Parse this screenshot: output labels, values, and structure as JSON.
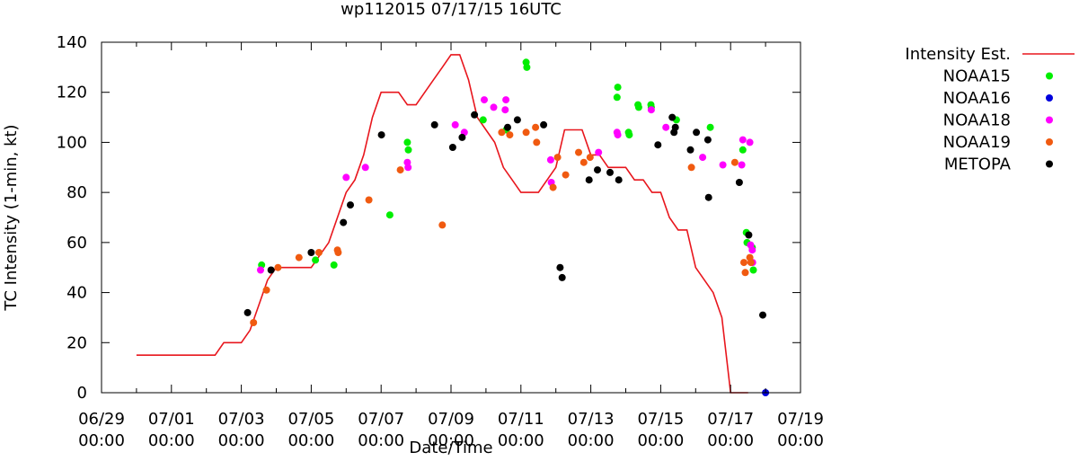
{
  "chart_data": {
    "type": "scatter",
    "title": "wp112015 07/17/15 16UTC",
    "xlabel": "Date/Time",
    "ylabel": "TC Intensity (1-min, kt)",
    "xlim": [
      "06/29 00:00",
      "07/19 00:00"
    ],
    "ylim": [
      0,
      140
    ],
    "x_unit": "days since 06/29 00:00",
    "x_ticks": [
      {
        "x": 0,
        "label1": "06/29",
        "label2": "00:00"
      },
      {
        "x": 2,
        "label1": "07/01",
        "label2": "00:00"
      },
      {
        "x": 4,
        "label1": "07/03",
        "label2": "00:00"
      },
      {
        "x": 6,
        "label1": "07/05",
        "label2": "00:00"
      },
      {
        "x": 8,
        "label1": "07/07",
        "label2": "00:00"
      },
      {
        "x": 10,
        "label1": "07/09",
        "label2": "00:00"
      },
      {
        "x": 12,
        "label1": "07/11",
        "label2": "00:00"
      },
      {
        "x": 14,
        "label1": "07/13",
        "label2": "00:00"
      },
      {
        "x": 16,
        "label1": "07/15",
        "label2": "00:00"
      },
      {
        "x": 18,
        "label1": "07/17",
        "label2": "00:00"
      },
      {
        "x": 20,
        "label1": "07/19",
        "label2": "00:00"
      }
    ],
    "y_ticks": [
      0,
      20,
      40,
      60,
      80,
      100,
      120,
      140
    ],
    "grid": false,
    "legend_position": "outside-right",
    "series": [
      {
        "name": "Intensity Est.",
        "type": "line",
        "color": "#e8161d",
        "x": [
          1.0,
          1.25,
          1.5,
          1.75,
          2.0,
          2.25,
          2.5,
          2.75,
          3.0,
          3.25,
          3.5,
          3.75,
          4.0,
          4.25,
          4.5,
          4.75,
          5.0,
          5.25,
          5.5,
          5.75,
          6.0,
          6.25,
          6.5,
          6.75,
          7.0,
          7.25,
          7.5,
          7.75,
          8.0,
          8.25,
          8.5,
          8.75,
          9.0,
          9.25,
          9.5,
          9.75,
          10.0,
          10.25,
          10.5,
          10.75,
          11.0,
          11.25,
          11.5,
          11.75,
          12.0,
          12.25,
          12.5,
          12.75,
          13.0,
          13.25,
          13.5,
          13.75,
          14.0,
          14.25,
          14.5,
          14.75,
          15.0,
          15.25,
          15.5,
          15.75,
          16.0,
          16.25,
          16.5,
          16.75,
          17.0,
          17.25,
          17.5,
          17.75,
          18.0,
          18.25,
          18.5
        ],
        "y": [
          15,
          15,
          15,
          15,
          15,
          15,
          15,
          15,
          15,
          15,
          20,
          20,
          20,
          25,
          35,
          45,
          50,
          50,
          50,
          50,
          50,
          55,
          60,
          70,
          80,
          85,
          95,
          110,
          120,
          120,
          120,
          115,
          115,
          120,
          125,
          130,
          135,
          135,
          125,
          110,
          105,
          100,
          90,
          85,
          80,
          80,
          80,
          85,
          90,
          105,
          105,
          105,
          95,
          95,
          90,
          90,
          90,
          85,
          85,
          80,
          80,
          70,
          65,
          65,
          50,
          45,
          40,
          30,
          0,
          0,
          0
        ]
      },
      {
        "name": "NOAA15",
        "type": "scatter",
        "color": "#00ee00",
        "x": [
          4.58,
          6.12,
          6.65,
          8.25,
          8.75,
          8.78,
          10.92,
          11.58,
          12.15,
          12.17,
          14.75,
          14.77,
          15.08,
          15.1,
          15.35,
          15.37,
          15.72,
          15.73,
          16.45,
          17.42,
          18.35,
          18.45,
          18.47,
          18.62,
          18.65
        ],
        "y": [
          51,
          53,
          51,
          71,
          100,
          97,
          109,
          105,
          132,
          130,
          118,
          122,
          104,
          103,
          115,
          114,
          115,
          114,
          109,
          106,
          97,
          64,
          60,
          58,
          49
        ]
      },
      {
        "name": "NOAA16",
        "type": "scatter",
        "color": "#0000dd",
        "x": [
          19.0
        ],
        "y": [
          0
        ]
      },
      {
        "name": "NOAA18",
        "type": "scatter",
        "color": "#ff00ff",
        "x": [
          4.55,
          7.0,
          7.55,
          8.75,
          8.77,
          10.12,
          10.38,
          10.95,
          11.22,
          11.55,
          11.57,
          12.85,
          12.87,
          14.22,
          14.75,
          14.77,
          15.73,
          16.15,
          17.2,
          17.78,
          18.32,
          18.35,
          18.55,
          18.57,
          18.62,
          18.63
        ],
        "y": [
          49,
          86,
          90,
          92,
          90,
          107,
          104,
          117,
          114,
          113,
          117,
          93,
          84,
          96,
          104,
          103,
          113,
          106,
          94,
          91,
          91,
          101,
          100,
          59,
          57,
          52
        ]
      },
      {
        "name": "NOAA19",
        "type": "scatter",
        "color": "#f05a10",
        "x": [
          4.35,
          4.72,
          5.05,
          5.65,
          6.22,
          6.75,
          6.77,
          7.65,
          8.55,
          9.75,
          11.45,
          11.68,
          12.15,
          12.42,
          12.45,
          12.92,
          13.05,
          13.28,
          13.65,
          13.8,
          13.98,
          16.88,
          18.12,
          18.38,
          18.42,
          18.55,
          18.58
        ],
        "y": [
          28,
          41,
          50,
          54,
          56,
          57,
          56,
          77,
          89,
          67,
          104,
          103,
          104,
          106,
          100,
          82,
          94,
          87,
          96,
          92,
          94,
          90,
          92,
          52,
          48,
          54,
          52
        ]
      },
      {
        "name": "METOPA",
        "type": "scatter",
        "color": "#000000",
        "x": [
          4.18,
          4.85,
          6.0,
          6.92,
          7.12,
          8.01,
          9.53,
          10.05,
          10.32,
          10.67,
          11.62,
          11.9,
          12.65,
          13.12,
          13.18,
          13.95,
          14.19,
          14.55,
          14.8,
          15.92,
          16.33,
          16.38,
          16.42,
          16.85,
          17.02,
          17.35,
          17.37,
          18.25,
          18.52,
          18.92
        ],
        "y": [
          32,
          49,
          56,
          68,
          75,
          103,
          107,
          98,
          102,
          111,
          106,
          109,
          107,
          50,
          46,
          85,
          89,
          88,
          85,
          99,
          110,
          104,
          106,
          97,
          104,
          101,
          78,
          84,
          63,
          31
        ]
      }
    ]
  }
}
